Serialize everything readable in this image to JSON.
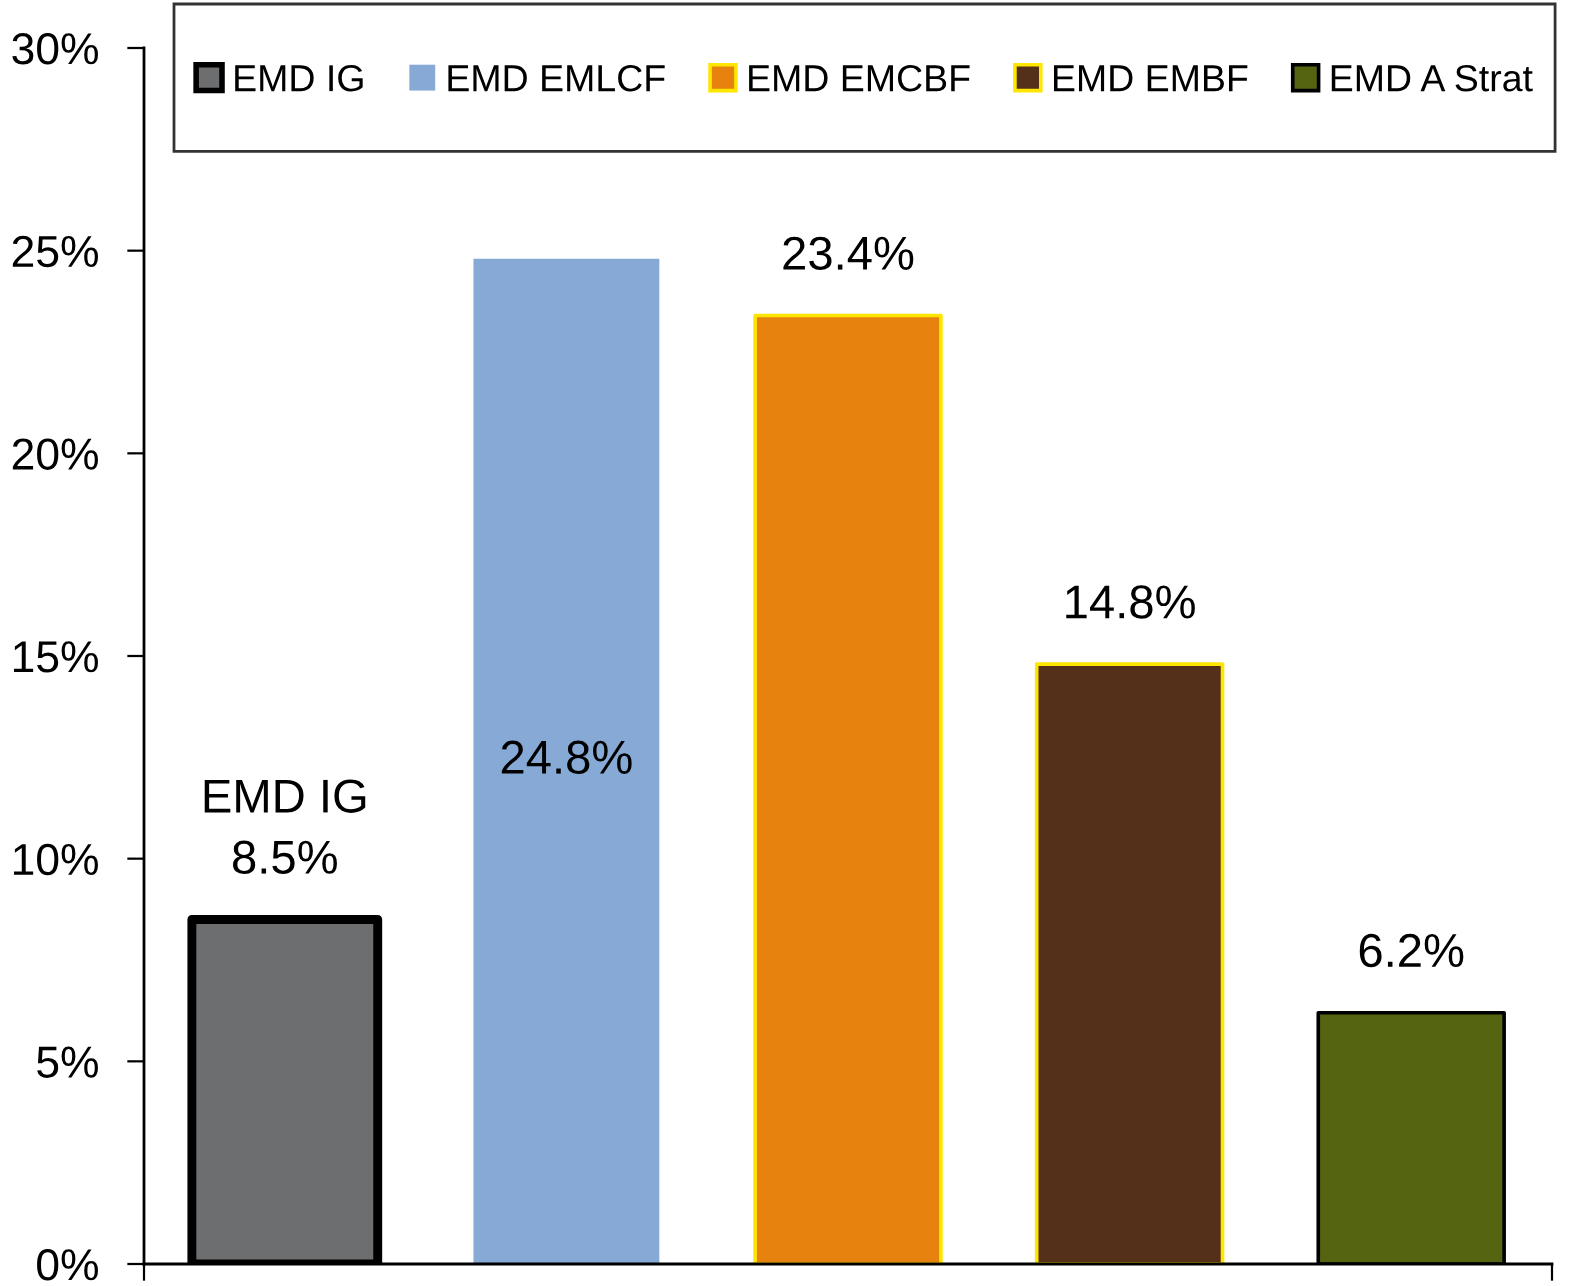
{
  "chart_data": {
    "type": "bar",
    "categories": [
      null,
      null,
      null,
      null,
      null
    ],
    "series": [
      {
        "name": "EMD IG",
        "color": "#6d6e70",
        "values": [
          8.5,
          null,
          null,
          null,
          null
        ],
        "value_labels": [
          "EMD IG\n8.5%",
          null,
          null,
          null,
          null
        ]
      },
      {
        "name": "EMD EMLCF",
        "color": "#87a9d5",
        "values": [
          null,
          24.8,
          null,
          null,
          null
        ],
        "value_labels": [
          null,
          "24.8%",
          null,
          null,
          null
        ]
      },
      {
        "name": "EMD EMCBF",
        "color": "#e8820f",
        "values": [
          null,
          null,
          23.4,
          null,
          null
        ],
        "value_labels": [
          null,
          null,
          "23.4%",
          null,
          null
        ]
      },
      {
        "name": "EMD EMBF",
        "color": "#54301a",
        "values": [
          null,
          null,
          null,
          14.8,
          null
        ],
        "value_labels": [
          null,
          null,
          null,
          "14.8%",
          null
        ]
      },
      {
        "name": "EMD A Strat",
        "color": "#546411",
        "values": [
          null,
          null,
          null,
          null,
          6.2
        ],
        "value_labels": [
          null,
          null,
          null,
          null,
          "6.2%"
        ]
      }
    ],
    "ylim": [
      0,
      30
    ],
    "yticks": [
      {
        "value": 0,
        "label": "0%"
      },
      {
        "value": 5,
        "label": "5%"
      },
      {
        "value": 10,
        "label": "10%"
      },
      {
        "value": 15,
        "label": "15%"
      },
      {
        "value": 20,
        "label": "20%"
      },
      {
        "value": 25,
        "label": "25%"
      },
      {
        "value": 30,
        "label": "30%"
      }
    ],
    "legend": "top",
    "tick_labels": "y",
    "grid": false
  }
}
